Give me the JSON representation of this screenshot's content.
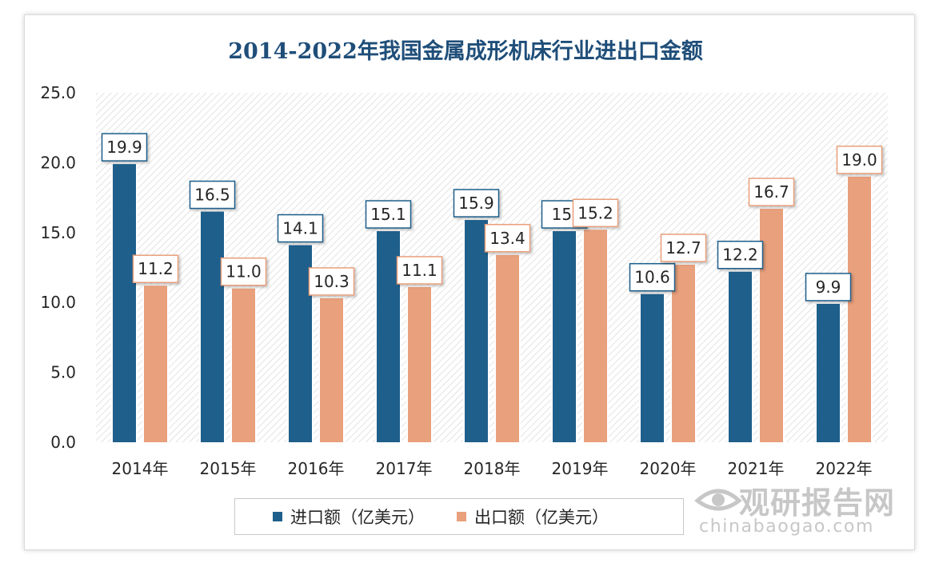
{
  "chart_data": {
    "type": "bar",
    "title": "2014-2022年我国金属成形机床行业进出口金额",
    "categories": [
      "2014年",
      "2015年",
      "2016年",
      "2017年",
      "2018年",
      "2019年",
      "2020年",
      "2021年",
      "2022年"
    ],
    "series": [
      {
        "name": "进口额（亿美元）",
        "color": "#1f5f8b",
        "values": [
          19.9,
          16.5,
          14.1,
          15.1,
          15.9,
          15.1,
          10.6,
          12.2,
          9.9
        ],
        "labels": [
          "19.9",
          "16.5",
          "14.1",
          "15.1",
          "15.9",
          "15.",
          "10.6",
          "12.2",
          "9.9"
        ]
      },
      {
        "name": "出口额（亿美元）",
        "color": "#e9a07c",
        "values": [
          11.2,
          11.0,
          10.3,
          11.1,
          13.4,
          15.2,
          12.7,
          16.7,
          19.0
        ],
        "labels": [
          "11.2",
          "11.0",
          "10.3",
          "11.1",
          "13.4",
          "15.2",
          "12.7",
          "16.7",
          "19.0"
        ]
      }
    ],
    "ylim": [
      0,
      25
    ],
    "yticks": [
      "0.0",
      "5.0",
      "10.0",
      "15.0",
      "20.0",
      "25.0"
    ],
    "xlabel": "",
    "ylabel": "",
    "grid": false,
    "legend_position": "bottom"
  },
  "watermark": {
    "brand": "观研报告网",
    "url": "chinabaogao.com"
  }
}
